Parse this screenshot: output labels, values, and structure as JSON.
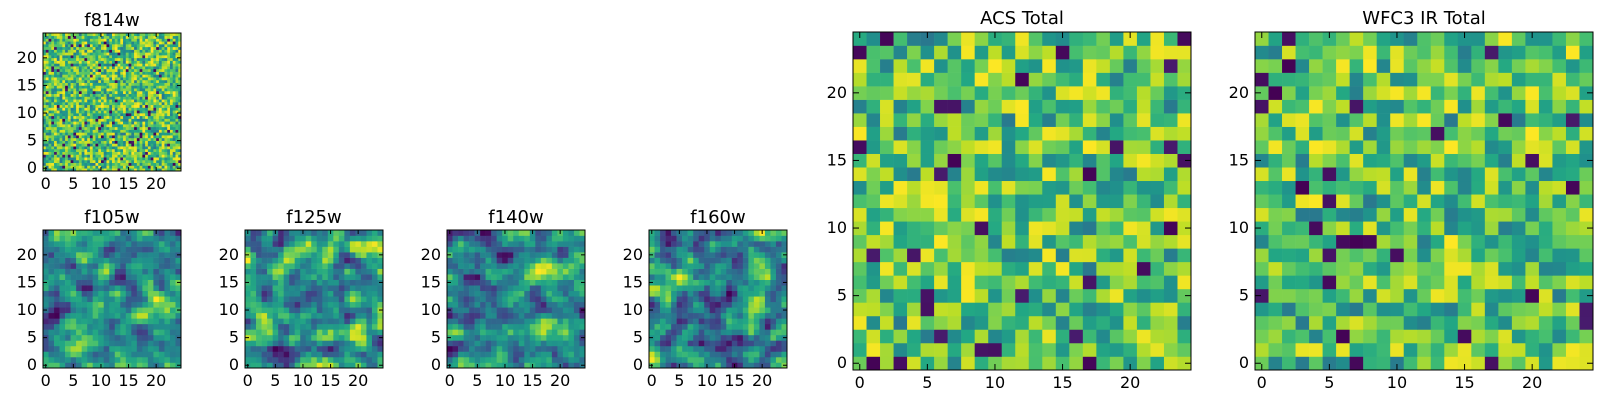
{
  "chart_data": [
    {
      "type": "heatmap",
      "id": "p-f814w",
      "title": "f814w",
      "xlim": [
        -0.5,
        24.5
      ],
      "ylim": [
        -0.5,
        24.5
      ],
      "xticks": [
        0,
        5,
        10,
        15,
        20
      ],
      "yticks": [
        0,
        5,
        10,
        15,
        20
      ],
      "grid_size": 50,
      "vmin": 0,
      "vmax": 1,
      "colormap": "viridis",
      "values_note": "noise field, approx. values",
      "seed": 814
    },
    {
      "type": "heatmap",
      "id": "p-f105w",
      "title": "f105w",
      "xlim": [
        -0.5,
        24.5
      ],
      "ylim": [
        -0.5,
        24.5
      ],
      "xticks": [
        0,
        5,
        10,
        15,
        20
      ],
      "yticks": [
        0,
        5,
        10,
        15,
        20
      ],
      "grid_size": 25,
      "vmin": 0,
      "vmax": 1,
      "colormap": "viridis",
      "values_note": "smoothed noise field, approx. values",
      "seed": 105
    },
    {
      "type": "heatmap",
      "id": "p-f125w",
      "title": "f125w",
      "xlim": [
        -0.5,
        24.5
      ],
      "ylim": [
        -0.5,
        24.5
      ],
      "xticks": [
        0,
        5,
        10,
        15,
        20
      ],
      "yticks": [
        0,
        5,
        10,
        15,
        20
      ],
      "grid_size": 25,
      "vmin": 0,
      "vmax": 1,
      "colormap": "viridis",
      "values_note": "smoothed noise field, approx. values",
      "seed": 125
    },
    {
      "type": "heatmap",
      "id": "p-f140w",
      "title": "f140w",
      "xlim": [
        -0.5,
        24.5
      ],
      "ylim": [
        -0.5,
        24.5
      ],
      "xticks": [
        0,
        5,
        10,
        15,
        20
      ],
      "yticks": [
        0,
        5,
        10,
        15,
        20
      ],
      "grid_size": 25,
      "vmin": 0,
      "vmax": 1,
      "colormap": "viridis",
      "values_note": "smoothed noise field, approx. values",
      "seed": 140
    },
    {
      "type": "heatmap",
      "id": "p-f160w",
      "title": "f160w",
      "xlim": [
        -0.5,
        24.5
      ],
      "ylim": [
        -0.5,
        24.5
      ],
      "xticks": [
        0,
        5,
        10,
        15,
        20
      ],
      "yticks": [
        0,
        5,
        10,
        15,
        20
      ],
      "grid_size": 25,
      "vmin": 0,
      "vmax": 1,
      "colormap": "viridis",
      "values_note": "smoothed noise field, approx. values",
      "seed": 160
    },
    {
      "type": "heatmap",
      "id": "p-acs",
      "title": "ACS Total",
      "xlim": [
        -0.5,
        24.5
      ],
      "ylim": [
        -0.5,
        24.5
      ],
      "xticks": [
        0,
        5,
        10,
        15,
        20
      ],
      "yticks": [
        0,
        5,
        10,
        15,
        20
      ],
      "grid_size": 25,
      "vmin": 0,
      "vmax": 1,
      "colormap": "viridis",
      "values_note": "noise field, approx. values",
      "seed": 901
    },
    {
      "type": "heatmap",
      "id": "p-wfc3",
      "title": "WFC3 IR Total",
      "xlim": [
        -0.5,
        24.5
      ],
      "ylim": [
        -0.5,
        24.5
      ],
      "xticks": [
        0,
        5,
        10,
        15,
        20
      ],
      "yticks": [
        0,
        5,
        10,
        15,
        20
      ],
      "grid_size": 25,
      "vmin": 0,
      "vmax": 1,
      "colormap": "viridis",
      "values_note": "noise field, approx. values",
      "seed": 902
    }
  ]
}
